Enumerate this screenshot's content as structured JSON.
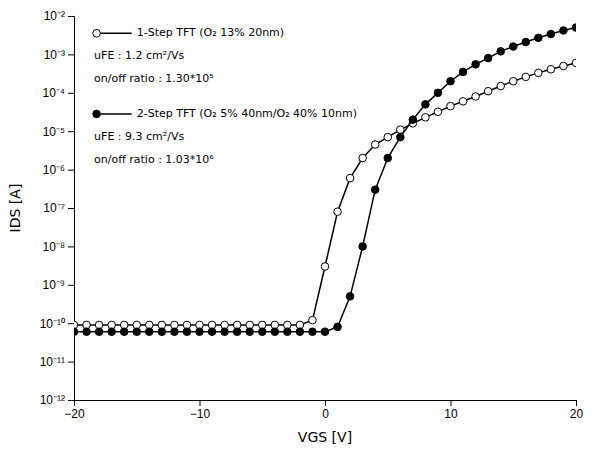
{
  "chart_data": {
    "type": "line",
    "xlabel": "VGS [V]",
    "ylabel": "IDS [A]",
    "log": "y",
    "grid": false,
    "legend": "upper left",
    "xlim": [
      -20,
      20
    ],
    "ylim": [
      1e-12,
      0.01
    ],
    "xticks": [
      {
        "value": -20,
        "label": "−20"
      },
      {
        "value": -10,
        "label": "−10"
      },
      0,
      10,
      20
    ],
    "yticks": [
      {
        "value": 1e-12,
        "label": "10⁻¹²"
      },
      {
        "value": 1e-11,
        "label": "10⁻¹¹"
      },
      {
        "value": 1e-10,
        "label": "10⁻¹⁰"
      },
      {
        "value": 1e-09,
        "label": "10⁻⁹"
      },
      {
        "value": 1e-08,
        "label": "10⁻⁸"
      },
      {
        "value": 1e-07,
        "label": "10⁻⁷"
      },
      {
        "value": 1e-06,
        "label": "10⁻⁶"
      },
      {
        "value": 1e-05,
        "label": "10⁻⁵"
      },
      {
        "value": 0.0001,
        "label": "10⁻⁴"
      },
      {
        "value": 0.001,
        "label": "10⁻³"
      },
      {
        "value": 0.01,
        "label": "10⁻²"
      }
    ],
    "x": [
      -20,
      -19,
      -18,
      -17,
      -16,
      -15,
      -14,
      -13,
      -12,
      -11,
      -10,
      -9,
      -8,
      -7,
      -6,
      -5,
      -4,
      -3,
      -2,
      -1,
      0,
      1,
      2,
      3,
      4,
      5,
      6,
      7,
      8,
      9,
      10,
      11,
      12,
      13,
      14,
      15,
      16,
      17,
      18,
      19,
      20
    ],
    "series": [
      {
        "name": "1-Step TFT (O₂ 13% 20nm)",
        "color": "#000000",
        "marker": "circle-open",
        "values": [
          9e-11,
          9e-11,
          9e-11,
          9e-11,
          9e-11,
          9e-11,
          9e-11,
          9e-11,
          9e-11,
          9e-11,
          9e-11,
          9e-11,
          9e-11,
          9e-11,
          9e-11,
          9e-11,
          9e-11,
          9e-11,
          9e-11,
          1.2e-10,
          3e-09,
          8e-08,
          6e-07,
          2e-06,
          4.5e-06,
          7e-06,
          1.1e-05,
          1.6e-05,
          2.3e-05,
          3.2e-05,
          4.5e-05,
          6e-05,
          8e-05,
          0.00011,
          0.00015,
          0.0002,
          0.00026,
          0.00033,
          0.00041,
          0.0005,
          0.0006
        ]
      },
      {
        "name": "2-Step TFT (O₂ 5% 40nm/O₂ 40% 10nm)",
        "color": "#000000",
        "marker": "circle",
        "values": [
          6e-11,
          6e-11,
          6e-11,
          6e-11,
          6e-11,
          6e-11,
          6e-11,
          6e-11,
          6e-11,
          6e-11,
          6e-11,
          6e-11,
          6e-11,
          6e-11,
          6e-11,
          6e-11,
          6e-11,
          6e-11,
          6e-11,
          6e-11,
          6e-11,
          8e-11,
          5e-10,
          1e-08,
          3e-07,
          2e-06,
          7e-06,
          2e-05,
          5e-05,
          0.0001,
          0.0002,
          0.00035,
          0.00055,
          0.0008,
          0.0012,
          0.0016,
          0.0021,
          0.0027,
          0.0034,
          0.0042,
          0.005
        ]
      }
    ],
    "annotations": [
      [
        "uFE : 1.2 cm²/Vs",
        "on/off ratio : 1.30*10⁵"
      ],
      [
        "uFE : 9.3 cm²/Vs",
        "on/off ratio : 1.03*10⁶"
      ]
    ]
  }
}
